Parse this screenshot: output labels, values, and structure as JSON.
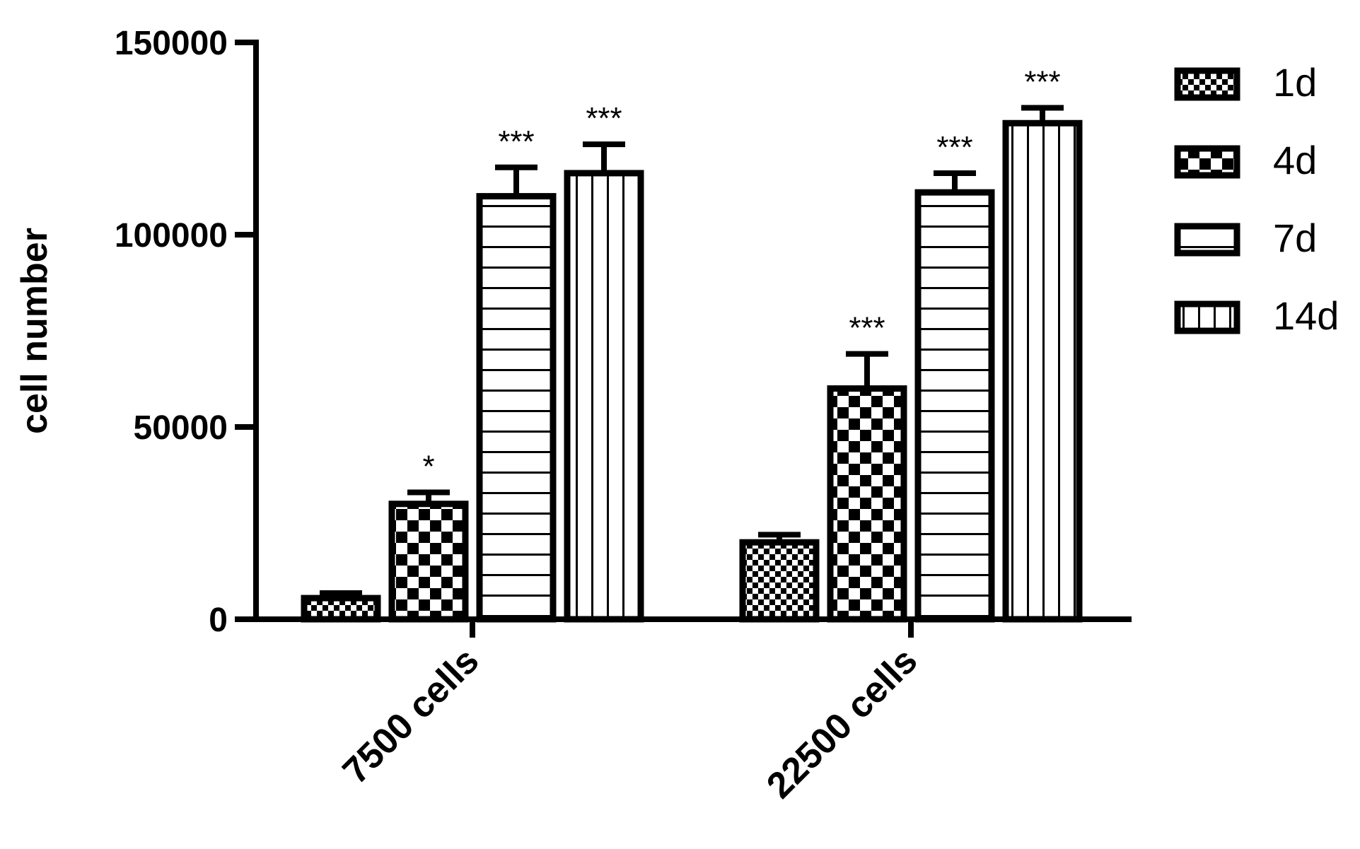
{
  "chart_data": {
    "type": "bar",
    "ylabel": "cell number",
    "ylim": [
      0,
      150000
    ],
    "yticks": [
      0,
      50000,
      100000,
      150000
    ],
    "ytick_labels": [
      "0",
      "50000",
      "100000",
      "150000"
    ],
    "categories": [
      "7500 cells",
      "22500 cells"
    ],
    "series": [
      {
        "name": "1d",
        "pattern": "fine-checker",
        "values": [
          5500,
          20000
        ],
        "errors": [
          1300,
          2000
        ],
        "significance": [
          "",
          ""
        ]
      },
      {
        "name": "4d",
        "pattern": "coarse-checker",
        "values": [
          30000,
          60000
        ],
        "errors": [
          3000,
          9000
        ],
        "significance": [
          "*",
          "***"
        ]
      },
      {
        "name": "7d",
        "pattern": "horizontal-lines",
        "values": [
          110000,
          111000
        ],
        "errors": [
          7500,
          5000
        ],
        "significance": [
          "***",
          "***"
        ]
      },
      {
        "name": "14d",
        "pattern": "vertical-lines",
        "values": [
          116000,
          129000
        ],
        "errors": [
          7500,
          4000
        ],
        "significance": [
          "***",
          "***"
        ]
      }
    ],
    "legend_position": "right",
    "grid": false,
    "colors": {
      "ink": "#000000",
      "fill": "#ffffff"
    }
  }
}
